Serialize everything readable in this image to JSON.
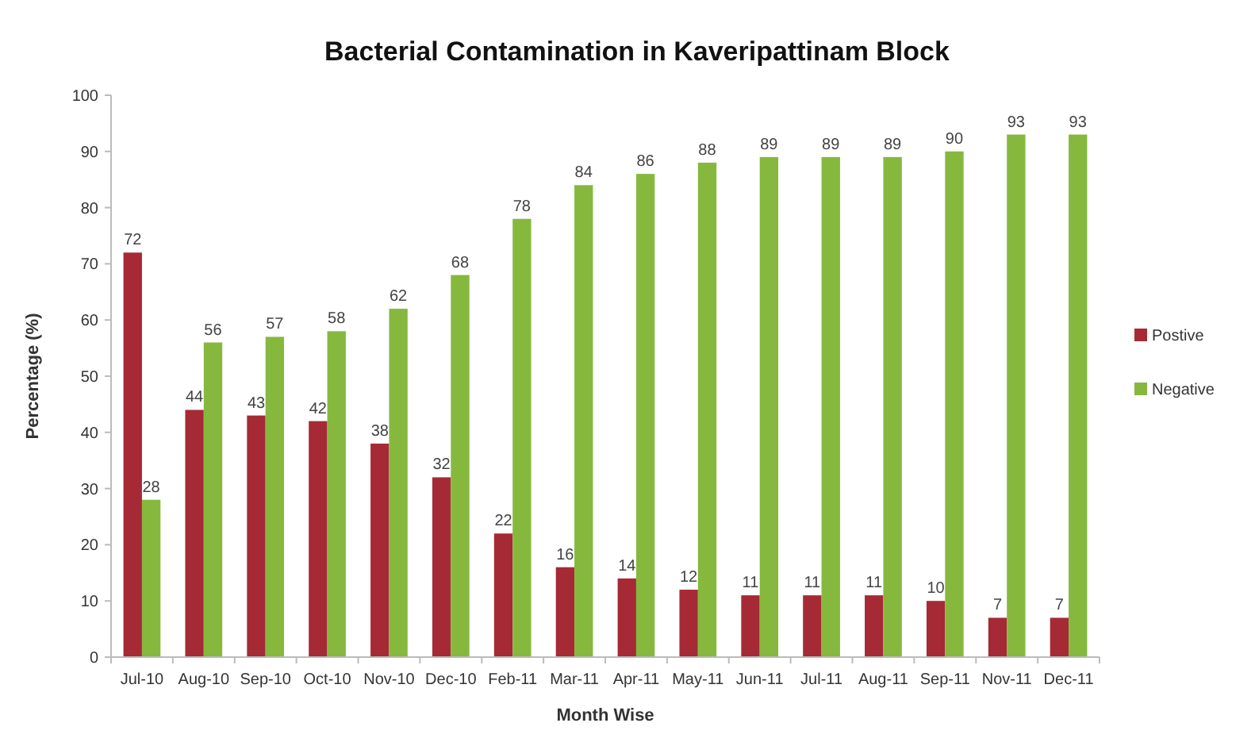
{
  "chart_data": {
    "type": "bar",
    "title": "Bacterial Contamination in Kaveripattinam Block",
    "xlabel": "Month Wise",
    "ylabel": "Percentage (%)",
    "categories": [
      "Jul-10",
      "Aug-10",
      "Sep-10",
      "Oct-10",
      "Nov-10",
      "Dec-10",
      "Feb-11",
      "Mar-11",
      "Apr-11",
      "May-11",
      "Jun-11",
      "Jul-11",
      "Aug-11",
      "Sep-11",
      "Nov-11",
      "Dec-11"
    ],
    "series": [
      {
        "name": "Postive",
        "color": "#a52a35",
        "values": [
          72,
          44,
          43,
          42,
          38,
          32,
          22,
          16,
          14,
          12,
          11,
          11,
          11,
          10,
          7,
          7
        ]
      },
      {
        "name": "Negative",
        "color": "#86b83e",
        "values": [
          28,
          56,
          57,
          58,
          62,
          68,
          78,
          84,
          86,
          88,
          89,
          89,
          89,
          90,
          93,
          93
        ]
      }
    ],
    "ylim": [
      0,
      100
    ],
    "yticks": [
      0,
      10,
      20,
      30,
      40,
      50,
      60,
      70,
      80,
      90,
      100
    ],
    "grid": false,
    "legend": "right",
    "data_labels": true
  }
}
